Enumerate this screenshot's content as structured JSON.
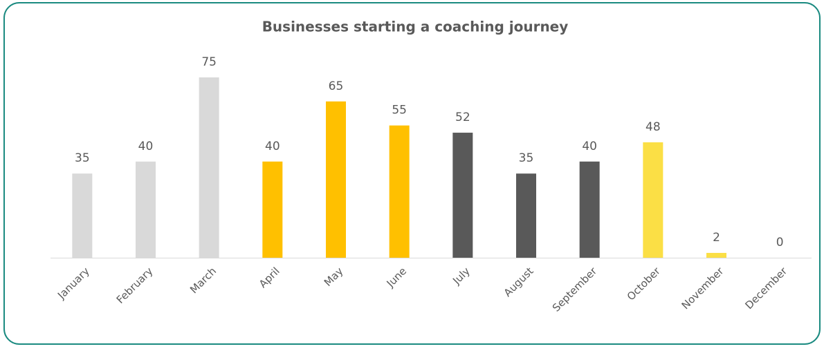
{
  "chart_data": {
    "type": "bar",
    "title": "Businesses starting a coaching journey",
    "categories": [
      "January",
      "February",
      "March",
      "April",
      "May",
      "June",
      "July",
      "August",
      "September",
      "October",
      "November",
      "December"
    ],
    "values": [
      35,
      40,
      75,
      40,
      65,
      55,
      52,
      35,
      40,
      48,
      2,
      0
    ],
    "colors": [
      "#d9d9d9",
      "#d9d9d9",
      "#d9d9d9",
      "#ffc000",
      "#ffc000",
      "#ffc000",
      "#595959",
      "#595959",
      "#595959",
      "#fbdf45",
      "#fbdf45",
      "#fbdf45"
    ],
    "ylim": [
      0,
      80
    ]
  }
}
